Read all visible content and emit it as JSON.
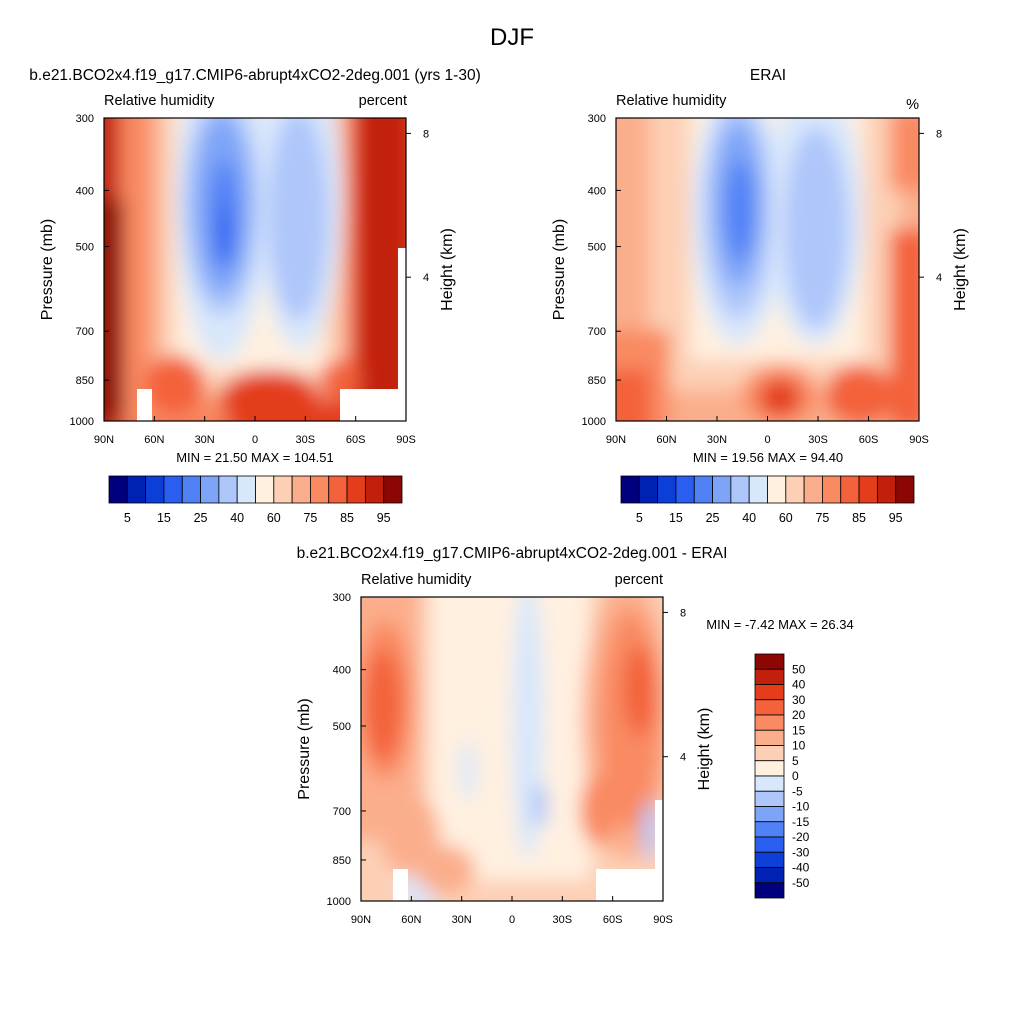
{
  "figure_title": "DJF",
  "colors": {
    "palette": [
      "#00007f",
      "#0022b4",
      "#0b3fd8",
      "#2a5ef0",
      "#5081f5",
      "#7ea4f8",
      "#aec6fa",
      "#d8e7fb",
      "#fff0e0",
      "#fdd0b6",
      "#fbae8c",
      "#f98a62",
      "#f3623a",
      "#e43d1c",
      "#c2200c",
      "#8c0703"
    ],
    "axis": "#000000",
    "missing": "#ffffff"
  },
  "chart_data": [
    {
      "type": "heatmap",
      "panel": "model",
      "title": "b.e21.BCO2x4.f19_g17.CMIP6-abrupt4xCO2-2deg.001 (yrs 1-30)",
      "left_label": "Relative humidity",
      "right_label": "percent",
      "ylabel": "Pressure (mb)",
      "right_axis_label": "Height (km)",
      "x_ticks": [
        "90N",
        "60N",
        "30N",
        "0",
        "30S",
        "60S",
        "90S"
      ],
      "x_values": [
        90,
        60,
        30,
        0,
        -30,
        -60,
        -90
      ],
      "y_ticks": [
        "300",
        "400",
        "500",
        "700",
        "850",
        "1000"
      ],
      "y_values": [
        300,
        400,
        500,
        700,
        850,
        1000
      ],
      "height_ticks": [
        "8",
        "4"
      ],
      "height_values": [
        8,
        4
      ],
      "x_range": [
        90,
        -90
      ],
      "y_range": [
        300,
        1000
      ],
      "y_scale": "log",
      "min_label": "MIN =  21.50  MAX = 104.51",
      "min": 21.5,
      "max": 104.51,
      "levels": [
        5,
        10,
        15,
        20,
        25,
        30,
        40,
        50,
        60,
        70,
        75,
        80,
        85,
        90,
        95
      ],
      "colorbar_labels": [
        "5",
        "15",
        "25",
        "40",
        "60",
        "75",
        "85",
        "95"
      ],
      "colorbar_orientation": "horizontal"
    },
    {
      "type": "heatmap",
      "panel": "obs",
      "title": "ERAI",
      "left_label": "Relative humidity",
      "right_label": "%",
      "ylabel": "Pressure (mb)",
      "right_axis_label": "Height (km)",
      "x_ticks": [
        "90N",
        "60N",
        "30N",
        "0",
        "30S",
        "60S",
        "90S"
      ],
      "x_values": [
        90,
        60,
        30,
        0,
        -30,
        -60,
        -90
      ],
      "y_ticks": [
        "300",
        "400",
        "500",
        "700",
        "850",
        "1000"
      ],
      "y_values": [
        300,
        400,
        500,
        700,
        850,
        1000
      ],
      "height_ticks": [
        "8",
        "4"
      ],
      "height_values": [
        8,
        4
      ],
      "x_range": [
        90,
        -90
      ],
      "y_range": [
        300,
        1000
      ],
      "y_scale": "log",
      "min_label": "MIN =  19.56  MAX =  94.40",
      "min": 19.56,
      "max": 94.4,
      "levels": [
        5,
        10,
        15,
        20,
        25,
        30,
        40,
        50,
        60,
        70,
        75,
        80,
        85,
        90,
        95
      ],
      "colorbar_labels": [
        "5",
        "15",
        "25",
        "40",
        "60",
        "75",
        "85",
        "95"
      ],
      "colorbar_orientation": "horizontal"
    },
    {
      "type": "heatmap",
      "panel": "diff",
      "title": "b.e21.BCO2x4.f19_g17.CMIP6-abrupt4xCO2-2deg.001 - ERAI",
      "left_label": "Relative humidity",
      "right_label": "percent",
      "ylabel": "Pressure (mb)",
      "right_axis_label": "Height (km)",
      "x_ticks": [
        "90N",
        "60N",
        "30N",
        "0",
        "30S",
        "60S",
        "90S"
      ],
      "x_values": [
        90,
        60,
        30,
        0,
        -30,
        -60,
        -90
      ],
      "y_ticks": [
        "300",
        "400",
        "500",
        "700",
        "850",
        "1000"
      ],
      "y_values": [
        300,
        400,
        500,
        700,
        850,
        1000
      ],
      "height_ticks": [
        "8",
        "4"
      ],
      "height_values": [
        8,
        4
      ],
      "x_range": [
        90,
        -90
      ],
      "y_range": [
        300,
        1000
      ],
      "y_scale": "log",
      "min_label": "MIN =  -7.42  MAX =  26.34",
      "min": -7.42,
      "max": 26.34,
      "levels": [
        -50,
        -40,
        -30,
        -20,
        -15,
        -10,
        -5,
        0,
        5,
        10,
        15,
        20,
        30,
        40,
        50
      ],
      "colorbar_labels": [
        "50",
        "40",
        "30",
        "20",
        "15",
        "10",
        "5",
        "0",
        "-5",
        "-10",
        "-15",
        "-20",
        "-30",
        "-40",
        "-50"
      ],
      "colorbar_orientation": "vertical"
    }
  ]
}
